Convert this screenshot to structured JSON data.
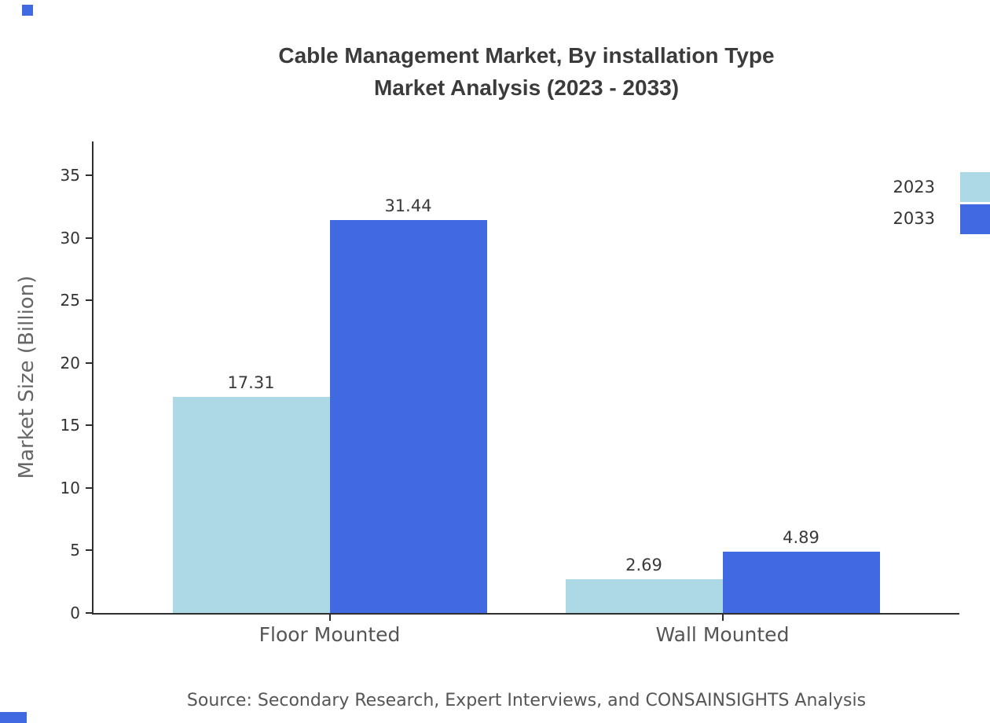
{
  "title": {
    "line1": "Cable Management Market, By installation Type",
    "line2": "Market Analysis (2023 - 2033)"
  },
  "chart_data": {
    "type": "bar",
    "categories": [
      "Floor Mounted",
      "Wall Mounted"
    ],
    "series": [
      {
        "name": "2023",
        "color": "#add8e6",
        "values": [
          17.31,
          2.69
        ]
      },
      {
        "name": "2033",
        "color": "#4169e1",
        "values": [
          31.44,
          4.89
        ]
      }
    ],
    "title": "Cable Management Market, By installation Type Market Analysis (2023 - 2033)",
    "xlabel": "",
    "ylabel": "Market Size (Billion)",
    "yticks": [
      0,
      5,
      10,
      15,
      20,
      25,
      30,
      35
    ],
    "ylim": [
      0,
      38
    ],
    "grid": false,
    "legend_position": "top-right",
    "value_labels": [
      "17.31",
      "31.44",
      "2.69",
      "4.89"
    ]
  },
  "source": "Source: Secondary Research, Expert Interviews, and CONSAINSIGHTS Analysis",
  "colors": {
    "series_2023": "#add8e6",
    "series_2033": "#4169e1",
    "axis": "#2f2f2f",
    "title_text": "#3b3b3b",
    "muted_text": "#666666"
  }
}
